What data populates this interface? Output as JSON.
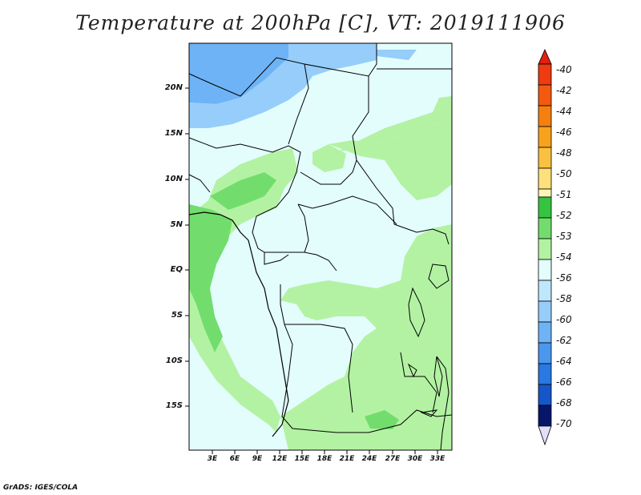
{
  "title": "Temperature at 200hPa [C], VT: 2019111906",
  "credit": "GrADS: IGES/COLA",
  "map": {
    "lat_labels": [
      "20N",
      "15N",
      "10N",
      "5N",
      "EQ",
      "5S",
      "10S",
      "15S"
    ],
    "lon_labels": [
      "3E",
      "6E",
      "9E",
      "12E",
      "15E",
      "18E",
      "21E",
      "24E",
      "27E",
      "30E",
      "33E"
    ]
  },
  "colorbar": {
    "labels": [
      "-40",
      "-42",
      "-44",
      "-46",
      "-48",
      "-50",
      "-51",
      "-52",
      "-53",
      "-54",
      "-56",
      "-58",
      "-60",
      "-62",
      "-64",
      "-66",
      "-68",
      "-70"
    ],
    "colors": {
      "top_arrow": "#e02010",
      "c1": "#f03a10",
      "c2": "#f35a10",
      "c3": "#f5800f",
      "c4": "#f8a21c",
      "c5": "#fac040",
      "c6": "#fde07a",
      "c7": "#fdf6b8",
      "c8": "#36c440",
      "c9": "#72dd6c",
      "c10": "#b3f2a3",
      "c11": "#e3fdfd",
      "c12": "#bfe6fc",
      "c13": "#96cdfa",
      "c14": "#6eb3f6",
      "c15": "#4a97ee",
      "c16": "#2a78e2",
      "c17": "#1557c8",
      "c18": "#0a3899",
      "c19": "#06166a",
      "bottom_arrow": "#e0e0f8"
    }
  },
  "legend_colors": {
    "lightgreen": "#b3f2a3",
    "midgreen": "#72dd6c",
    "green": "#36c440",
    "cyanwhite": "#e3fdfd",
    "lightblue": "#96cdfa",
    "blue": "#6eb3f6"
  }
}
